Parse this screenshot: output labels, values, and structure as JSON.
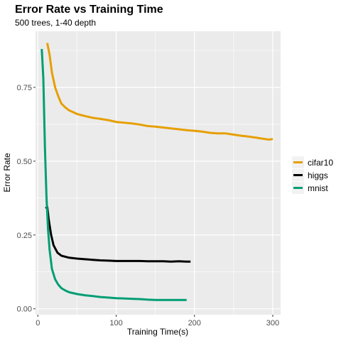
{
  "chart_data": {
    "type": "line",
    "title": "Error Rate vs Training Time",
    "subtitle": "500 trees, 1-40 depth",
    "xlabel": "Training Time(s)",
    "ylabel": "Error Rate",
    "xlim": [
      -3,
      310
    ],
    "ylim": [
      -0.02,
      0.94
    ],
    "x_ticks": [
      0,
      100,
      200,
      300
    ],
    "x_tick_labels": [
      "0",
      "100",
      "200",
      "300"
    ],
    "y_ticks": [
      0.0,
      0.25,
      0.5,
      0.75
    ],
    "y_tick_labels": [
      "0.00",
      "0.25",
      "0.50",
      "0.75"
    ],
    "grid": true,
    "legend_position": "right",
    "series": [
      {
        "name": "cifar10",
        "color": "#E69F00",
        "x": [
          12,
          15,
          18,
          22,
          26,
          30,
          35,
          40,
          50,
          60,
          70,
          80,
          90,
          100,
          110,
          120,
          130,
          140,
          150,
          160,
          170,
          180,
          190,
          200,
          210,
          220,
          230,
          240,
          250,
          260,
          270,
          280,
          285,
          290,
          295,
          300
        ],
        "y": [
          0.9,
          0.86,
          0.8,
          0.75,
          0.72,
          0.695,
          0.682,
          0.672,
          0.66,
          0.653,
          0.647,
          0.643,
          0.639,
          0.633,
          0.63,
          0.628,
          0.624,
          0.619,
          0.617,
          0.614,
          0.611,
          0.608,
          0.605,
          0.603,
          0.6,
          0.596,
          0.594,
          0.594,
          0.59,
          0.586,
          0.583,
          0.579,
          0.577,
          0.575,
          0.573,
          0.575
        ]
      },
      {
        "name": "higgs",
        "color": "#000000",
        "x": [
          10,
          12,
          14,
          17,
          20,
          25,
          30,
          40,
          50,
          60,
          70,
          80,
          90,
          100,
          110,
          120,
          130,
          140,
          150,
          160,
          170,
          180,
          190,
          195
        ],
        "y": [
          0.34,
          0.345,
          0.3,
          0.25,
          0.215,
          0.19,
          0.18,
          0.173,
          0.17,
          0.168,
          0.166,
          0.164,
          0.163,
          0.162,
          0.162,
          0.162,
          0.162,
          0.161,
          0.161,
          0.161,
          0.16,
          0.161,
          0.16,
          0.16
        ]
      },
      {
        "name": "mnist",
        "color": "#009E73",
        "x": [
          5,
          7,
          9,
          11,
          13,
          15,
          18,
          22,
          26,
          30,
          35,
          40,
          50,
          60,
          70,
          80,
          90,
          100,
          110,
          120,
          130,
          140,
          150,
          160,
          170,
          180,
          190
        ],
        "y": [
          0.88,
          0.78,
          0.55,
          0.38,
          0.27,
          0.2,
          0.135,
          0.1,
          0.082,
          0.07,
          0.062,
          0.056,
          0.05,
          0.046,
          0.043,
          0.04,
          0.038,
          0.036,
          0.035,
          0.034,
          0.033,
          0.031,
          0.03,
          0.03,
          0.03,
          0.03,
          0.03
        ]
      }
    ]
  }
}
